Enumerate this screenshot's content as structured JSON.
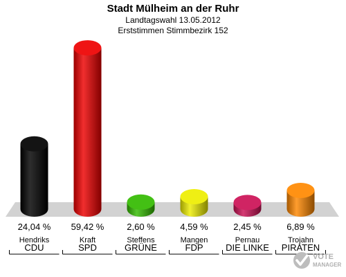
{
  "header": {
    "title": "Stadt Mülheim an der Ruhr",
    "subtitle1": "Landtagswahl 13.05.2012",
    "subtitle2": "Erststimmen Stimmbezirk 152"
  },
  "chart_data": {
    "type": "bar",
    "title": "Stadt Mülheim an der Ruhr",
    "subtitle": [
      "Landtagswahl 13.05.2012",
      "Erststimmen Stimmbezirk 152"
    ],
    "categories": [
      "CDU",
      "SPD",
      "GRÜNE",
      "FDP",
      "DIE LINKE",
      "PIRATEN"
    ],
    "candidates": [
      "Hendriks",
      "Kraft",
      "Steffens",
      "Mangen",
      "Pernau",
      "Trojahn"
    ],
    "values": [
      24.04,
      59.42,
      2.6,
      4.59,
      2.45,
      6.89
    ],
    "value_labels": [
      "24,04 %",
      "59,42 %",
      "2,60 %",
      "4,59 %",
      "2,45 %",
      "6,89 %"
    ],
    "colors": [
      "#000000",
      "#ee0000",
      "#33bb00",
      "#eeee00",
      "#cc1155",
      "#ff8800"
    ],
    "ylim": [
      0,
      60
    ],
    "grid": false
  },
  "logo": {
    "line1": "VOTE",
    "line2": "MANAGER"
  }
}
